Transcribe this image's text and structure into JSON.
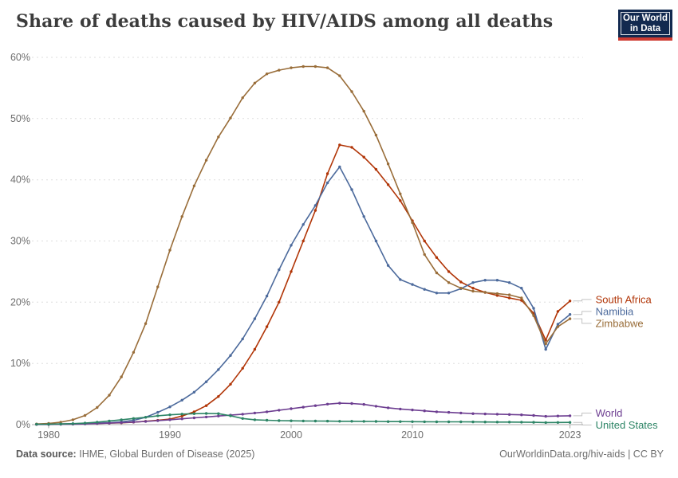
{
  "header": {
    "title": "Share of deaths caused by HIV/AIDS among all deaths",
    "logo": {
      "line1": "Our World",
      "line2": "in Data"
    }
  },
  "footer": {
    "source_label": "Data source:",
    "source_text": "IHME, Global Burden of Disease (2025)",
    "credit": "OurWorldinData.org/hiv-aids | CC BY"
  },
  "chart_data": {
    "type": "line",
    "title": "Share of deaths caused by HIV/AIDS among all deaths",
    "unit": "%",
    "grid": "horizontal-dashed",
    "markers": true,
    "legend_position": "line-end-labels-right",
    "ylim": [
      0,
      60
    ],
    "yticks": [
      0,
      10,
      20,
      30,
      40,
      50,
      60
    ],
    "xticks": [
      1980,
      1990,
      2000,
      2010,
      2023
    ],
    "x_years": [
      1979,
      1980,
      1981,
      1982,
      1983,
      1984,
      1985,
      1986,
      1987,
      1988,
      1989,
      1990,
      1991,
      1992,
      1993,
      1994,
      1995,
      1996,
      1997,
      1998,
      1999,
      2000,
      2001,
      2002,
      2003,
      2004,
      2005,
      2006,
      2007,
      2008,
      2009,
      2010,
      2011,
      2012,
      2013,
      2014,
      2015,
      2016,
      2017,
      2018,
      2019,
      2020,
      2021,
      2022,
      2023
    ],
    "series": [
      {
        "name": "South Africa",
        "color": "#B13507",
        "values": [
          0.05,
          0.05,
          0.1,
          0.1,
          0.15,
          0.2,
          0.25,
          0.3,
          0.4,
          0.55,
          0.7,
          0.9,
          1.4,
          2.1,
          3.1,
          4.6,
          6.6,
          9.2,
          12.3,
          16.0,
          20.0,
          25.0,
          30.0,
          35.0,
          41.0,
          45.7,
          45.3,
          43.7,
          41.7,
          39.2,
          36.6,
          33.3,
          30.0,
          27.3,
          25.0,
          23.3,
          22.3,
          21.6,
          21.1,
          20.7,
          20.3,
          18.2,
          13.8,
          18.5,
          20.2
        ]
      },
      {
        "name": "Namibia",
        "color": "#4C6A9C",
        "values": [
          0.05,
          0.1,
          0.1,
          0.15,
          0.2,
          0.25,
          0.3,
          0.45,
          0.7,
          1.2,
          2.0,
          2.9,
          4.0,
          5.3,
          7.0,
          9.0,
          11.3,
          14.0,
          17.3,
          21.0,
          25.3,
          29.3,
          32.7,
          35.8,
          39.5,
          42.1,
          38.4,
          34.0,
          30.0,
          26.0,
          23.7,
          22.9,
          22.1,
          21.5,
          21.5,
          22.2,
          23.2,
          23.6,
          23.6,
          23.2,
          22.3,
          19.0,
          12.3,
          16.4,
          18.0
        ]
      },
      {
        "name": "Zimbabwe",
        "color": "#996D39",
        "values": [
          0.1,
          0.2,
          0.4,
          0.8,
          1.5,
          2.8,
          4.8,
          7.8,
          11.8,
          16.5,
          22.5,
          28.5,
          34.0,
          39.0,
          43.2,
          47.0,
          50.1,
          53.4,
          55.8,
          57.3,
          57.9,
          58.3,
          58.5,
          58.5,
          58.3,
          57.0,
          54.4,
          51.2,
          47.3,
          42.6,
          37.7,
          33.0,
          27.8,
          24.8,
          23.2,
          22.3,
          21.8,
          21.6,
          21.4,
          21.2,
          20.7,
          17.8,
          13.2,
          16.0,
          17.3
        ]
      },
      {
        "name": "World",
        "color": "#6D3E91",
        "values": [
          0.02,
          0.03,
          0.05,
          0.08,
          0.12,
          0.18,
          0.25,
          0.33,
          0.42,
          0.52,
          0.65,
          0.8,
          0.95,
          1.1,
          1.25,
          1.4,
          1.55,
          1.7,
          1.9,
          2.1,
          2.35,
          2.6,
          2.85,
          3.1,
          3.35,
          3.5,
          3.45,
          3.3,
          3.0,
          2.75,
          2.55,
          2.4,
          2.25,
          2.1,
          2.0,
          1.9,
          1.8,
          1.75,
          1.7,
          1.65,
          1.6,
          1.5,
          1.35,
          1.4,
          1.45
        ]
      },
      {
        "name": "United States",
        "color": "#2C8465",
        "values": [
          0.05,
          0.07,
          0.1,
          0.15,
          0.25,
          0.4,
          0.6,
          0.8,
          1.0,
          1.2,
          1.45,
          1.6,
          1.72,
          1.78,
          1.82,
          1.8,
          1.45,
          1.0,
          0.8,
          0.72,
          0.65,
          0.62,
          0.6,
          0.58,
          0.57,
          0.55,
          0.55,
          0.53,
          0.52,
          0.5,
          0.5,
          0.48,
          0.47,
          0.46,
          0.45,
          0.45,
          0.44,
          0.43,
          0.42,
          0.41,
          0.4,
          0.38,
          0.34,
          0.35,
          0.36
        ]
      }
    ]
  }
}
